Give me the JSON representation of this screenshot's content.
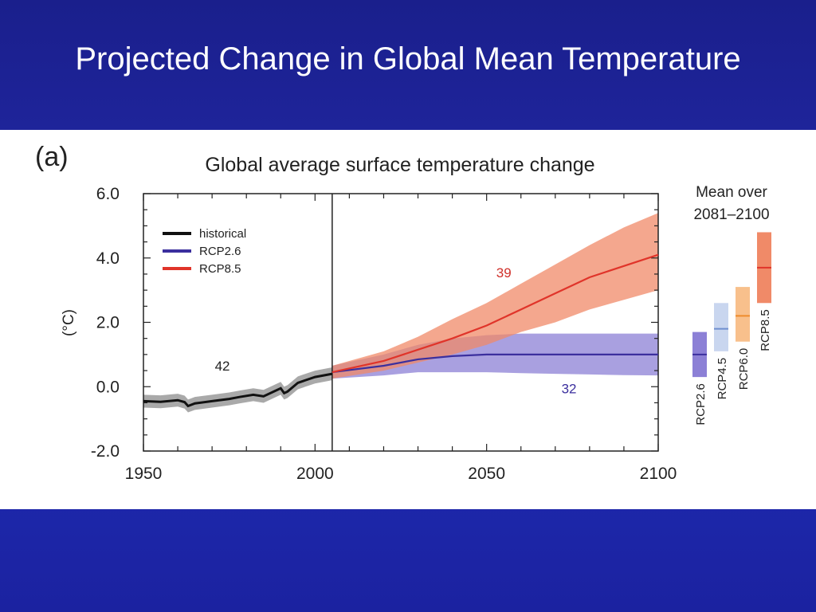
{
  "slide": {
    "title": "Projected Change in Global Mean Temperature"
  },
  "colors": {
    "background": "#1e24a0",
    "historical": "#111111",
    "rcp26": "#3b2f9e",
    "rcp26_band": "#8c80d6",
    "rcp45": "#9bb3dd",
    "rcp60": "#f5a44e",
    "rcp85": "#e0342a",
    "rcp85_band": "#f08a68"
  },
  "chart_data": {
    "type": "line",
    "panel_label": "(a)",
    "title": "Global average surface temperature change",
    "ylabel": "(°C)",
    "xlabel": "",
    "xlim": [
      1950,
      2100
    ],
    "ylim": [
      -2.0,
      6.0
    ],
    "x_ticks": [
      "1950",
      "2000",
      "2050",
      "2100"
    ],
    "y_ticks": [
      "6.0",
      "4.0",
      "2.0",
      "0.0",
      "-2.0"
    ],
    "divider_year": 2005,
    "legend": {
      "position": "top-left",
      "entries": [
        "historical",
        "RCP2.6",
        "RCP8.5"
      ]
    },
    "annotations": [
      {
        "text": "42",
        "x": 1973,
        "y": 0.5,
        "color": "#222222"
      },
      {
        "text": "39",
        "x": 2055,
        "y": 3.4,
        "color": "#d0302a"
      },
      {
        "text": "32",
        "x": 2074,
        "y": -0.2,
        "color": "#3b2f9e"
      }
    ],
    "series": [
      {
        "name": "historical",
        "x": [
          1950,
          1955,
          1960,
          1962,
          1963,
          1965,
          1970,
          1975,
          1978,
          1982,
          1985,
          1990,
          1991,
          1992,
          1995,
          2000,
          2005
        ],
        "y": [
          -0.45,
          -0.47,
          -0.42,
          -0.48,
          -0.6,
          -0.52,
          -0.45,
          -0.38,
          -0.32,
          -0.25,
          -0.3,
          -0.05,
          -0.2,
          -0.15,
          0.12,
          0.3,
          0.4
        ],
        "lower": [
          -0.65,
          -0.67,
          -0.62,
          -0.68,
          -0.8,
          -0.72,
          -0.65,
          -0.58,
          -0.52,
          -0.45,
          -0.5,
          -0.25,
          -0.4,
          -0.35,
          -0.08,
          0.1,
          0.2
        ],
        "upper": [
          -0.25,
          -0.27,
          -0.22,
          -0.28,
          -0.4,
          -0.32,
          -0.25,
          -0.18,
          -0.12,
          -0.05,
          -0.1,
          0.15,
          0.0,
          0.05,
          0.32,
          0.5,
          0.6
        ]
      },
      {
        "name": "RCP2.6",
        "x": [
          2005,
          2020,
          2030,
          2040,
          2050,
          2060,
          2070,
          2080,
          2090,
          2100
        ],
        "y": [
          0.45,
          0.65,
          0.85,
          0.95,
          1.0,
          1.0,
          1.0,
          1.0,
          1.0,
          1.0
        ],
        "lower": [
          0.25,
          0.35,
          0.45,
          0.45,
          0.45,
          0.42,
          0.4,
          0.38,
          0.36,
          0.35
        ],
        "upper": [
          0.65,
          1.0,
          1.3,
          1.5,
          1.6,
          1.65,
          1.65,
          1.65,
          1.65,
          1.65
        ]
      },
      {
        "name": "RCP8.5",
        "x": [
          2005,
          2020,
          2030,
          2040,
          2050,
          2060,
          2070,
          2080,
          2090,
          2100
        ],
        "y": [
          0.45,
          0.8,
          1.15,
          1.5,
          1.9,
          2.4,
          2.9,
          3.4,
          3.75,
          4.1
        ],
        "lower": [
          0.25,
          0.5,
          0.75,
          1.0,
          1.3,
          1.7,
          2.0,
          2.4,
          2.7,
          3.0
        ],
        "upper": [
          0.65,
          1.1,
          1.55,
          2.1,
          2.6,
          3.2,
          3.8,
          4.4,
          4.95,
          5.4
        ]
      }
    ],
    "mean_2081_2100": {
      "title_line1": "Mean over",
      "title_line2": "2081–2100",
      "bars": [
        {
          "name": "RCP2.6",
          "low": 0.3,
          "mean": 1.0,
          "high": 1.7,
          "fill": "#8c80d6",
          "line": "#3b2f9e"
        },
        {
          "name": "RCP4.5",
          "low": 1.1,
          "mean": 1.8,
          "high": 2.6,
          "fill": "#c9d6ef",
          "line": "#6f8fcf"
        },
        {
          "name": "RCP6.0",
          "low": 1.4,
          "mean": 2.2,
          "high": 3.1,
          "fill": "#f8c08c",
          "line": "#ef8c2c"
        },
        {
          "name": "RCP8.5",
          "low": 2.6,
          "mean": 3.7,
          "high": 4.8,
          "fill": "#f08a68",
          "line": "#e0342a"
        }
      ]
    }
  }
}
